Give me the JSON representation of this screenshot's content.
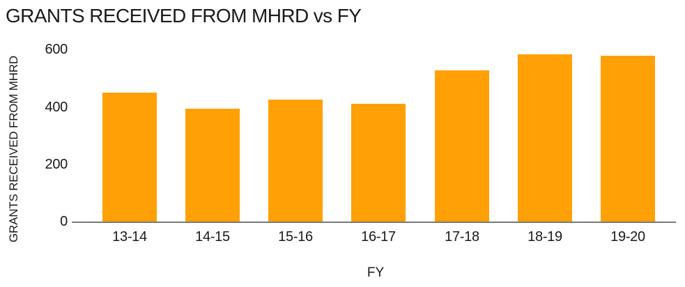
{
  "page": {
    "background": "#FFFFFF"
  },
  "chart_data": {
    "type": "bar",
    "title": "GRANTS RECEIVED FROM MHRD vs FY",
    "xlabel": "FY",
    "ylabel": "GRANTS RECEIVED FROM MHRD",
    "categories": [
      "13-14",
      "14-15",
      "15-16",
      "16-17",
      "17-18",
      "18-19",
      "19-20"
    ],
    "values": [
      450,
      395,
      425,
      410,
      528,
      583,
      578
    ],
    "yticks": [
      0,
      200,
      400,
      600
    ],
    "ylim": [
      0,
      620
    ],
    "grid": false,
    "legend": "none",
    "colors": {
      "bar": "#FFA006",
      "axis_line": "#77787B",
      "text": "#1A1A1A"
    }
  }
}
